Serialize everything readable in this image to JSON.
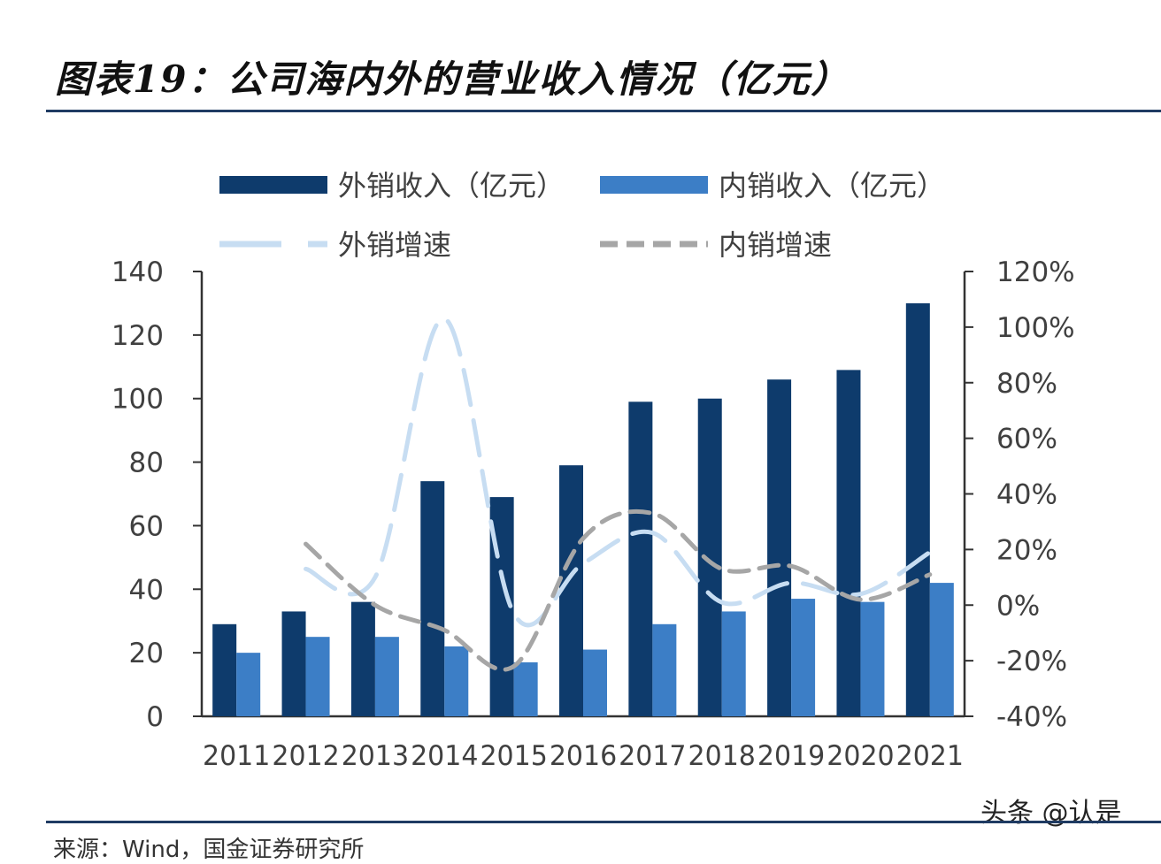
{
  "page": {
    "title": "图表19：公司海内外的营业收入情况（亿元）",
    "source": "来源：Wind，国金证券研究所",
    "watermark": "头条 @认是"
  },
  "colors": {
    "export_bar": "#0e3b6c",
    "domestic_bar": "#3c7ec6",
    "export_growth": "#c7ddf2",
    "domestic_growth": "#a6a6a6",
    "axis": "#333333",
    "text": "#404040"
  },
  "chart_data": {
    "type": "bar",
    "title": "图表19：公司海内外的营业收入情况（亿元）",
    "categories": [
      "2011",
      "2012",
      "2013",
      "2014",
      "2015",
      "2016",
      "2017",
      "2018",
      "2019",
      "2020",
      "2021"
    ],
    "series": [
      {
        "name": "外销收入（亿元）",
        "type": "bar",
        "axis": "left",
        "values": [
          29,
          33,
          36,
          74,
          69,
          79,
          99,
          100,
          106,
          109,
          130
        ]
      },
      {
        "name": "内销收入（亿元）",
        "type": "bar",
        "axis": "left",
        "values": [
          20,
          25,
          25,
          22,
          17,
          21,
          29,
          33,
          37,
          36,
          42
        ]
      },
      {
        "name": "外销增速",
        "type": "line",
        "style": "dashed",
        "axis": "right",
        "x": [
          "2012",
          "2013",
          "2014",
          "2015",
          "2016",
          "2017",
          "2018",
          "2019",
          "2020",
          "2021"
        ],
        "values": [
          13,
          10,
          103,
          -3,
          15,
          26,
          1,
          8,
          4,
          19
        ]
      },
      {
        "name": "内销增速",
        "type": "line",
        "style": "dashed",
        "axis": "right",
        "x": [
          "2012",
          "2013",
          "2014",
          "2015",
          "2016",
          "2017",
          "2018",
          "2019",
          "2020",
          "2021"
        ],
        "values": [
          22,
          0,
          -9,
          -22,
          24,
          33,
          13,
          14,
          2,
          11
        ]
      }
    ],
    "left_axis": {
      "ylim": [
        0,
        140
      ],
      "ticks": [
        0,
        20,
        40,
        60,
        80,
        100,
        120,
        140
      ]
    },
    "right_axis": {
      "ylim": [
        -40,
        120
      ],
      "ticks": [
        -40,
        -20,
        0,
        20,
        40,
        60,
        80,
        100,
        120
      ],
      "tick_suffix": "%"
    },
    "legend": {
      "position": "top",
      "items": [
        "外销收入（亿元）",
        "内销收入（亿元）",
        "外销增速",
        "内销增速"
      ]
    }
  }
}
